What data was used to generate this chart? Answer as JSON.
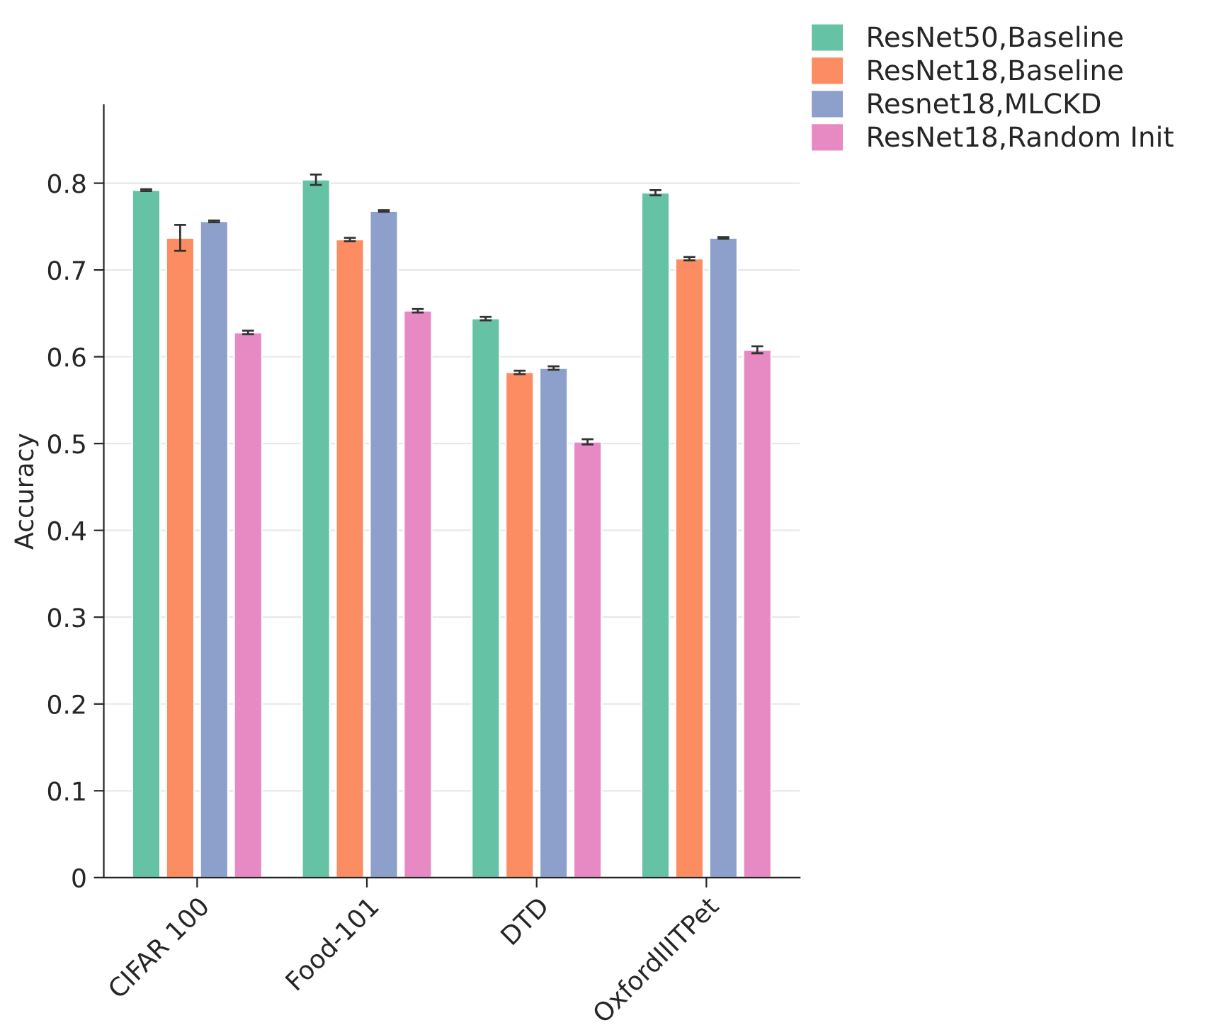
{
  "chart_data": {
    "type": "bar",
    "ylabel": "Accuracy",
    "categories": [
      "CIFAR 100",
      "Food-101",
      "DTD",
      "OxfordIIITPet"
    ],
    "series": [
      {
        "name": "ResNet50,Baseline",
        "color": "#66c2a5",
        "values": [
          0.792,
          0.804,
          0.644,
          0.789
        ],
        "errors": [
          0.001,
          0.006,
          0.002,
          0.003
        ]
      },
      {
        "name": "ResNet18,Baseline",
        "color": "#fc8d62",
        "values": [
          0.737,
          0.735,
          0.582,
          0.713
        ],
        "errors": [
          0.015,
          0.002,
          0.002,
          0.002
        ]
      },
      {
        "name": "Resnet18,MLCKD",
        "color": "#8da0cb",
        "values": [
          0.756,
          0.768,
          0.587,
          0.737
        ],
        "errors": [
          0.001,
          0.001,
          0.002,
          0.001
        ]
      },
      {
        "name": "ResNet18,Random Init",
        "color": "#e78ac3",
        "values": [
          0.628,
          0.653,
          0.502,
          0.608
        ],
        "errors": [
          0.002,
          0.002,
          0.003,
          0.004
        ]
      }
    ],
    "ylim": [
      0,
      0.89
    ],
    "yticks": [
      0,
      0.1,
      0.2,
      0.3,
      0.4,
      0.5,
      0.6,
      0.7,
      0.8
    ],
    "grid": "y",
    "legend": "top right"
  }
}
